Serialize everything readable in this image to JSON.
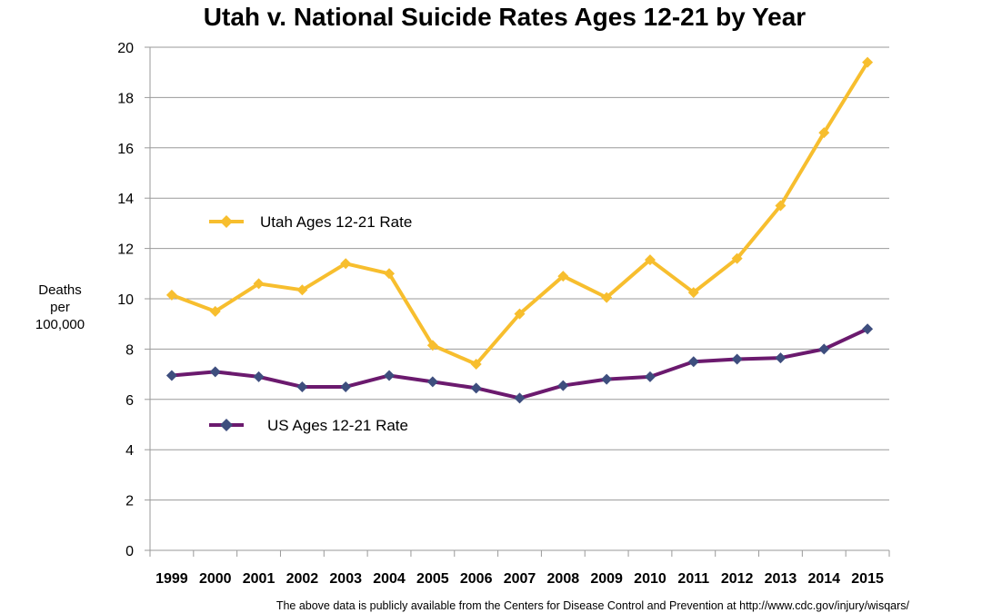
{
  "chart_data": {
    "type": "line",
    "title": "Utah v. National Suicide Rates Ages 12-21 by Year",
    "ylabel_lines": [
      "Deaths",
      "per",
      "100,000"
    ],
    "xlabel": "",
    "x": [
      "1999",
      "2000",
      "2001",
      "2002",
      "2003",
      "2004",
      "2005",
      "2006",
      "2007",
      "2008",
      "2009",
      "2010",
      "2011",
      "2012",
      "2013",
      "2014",
      "2015"
    ],
    "yticks": [
      "0",
      "2",
      "4",
      "6",
      "8",
      "10",
      "12",
      "14",
      "16",
      "18",
      "20"
    ],
    "ylim": [
      0,
      20
    ],
    "grid": true,
    "series": [
      {
        "name": "Utah Ages 12-21 Rate",
        "color": "#F7BE2E",
        "values": [
          10.15,
          9.5,
          10.6,
          10.35,
          11.4,
          11.0,
          8.15,
          7.4,
          9.4,
          10.9,
          10.05,
          11.55,
          10.25,
          11.6,
          13.7,
          16.6,
          19.4
        ]
      },
      {
        "name": "US Ages 12-21 Rate",
        "color": "#6B1A6E",
        "marker_color": "#3E4E7E",
        "values": [
          6.95,
          7.1,
          6.9,
          6.5,
          6.5,
          6.95,
          6.7,
          6.45,
          6.05,
          6.55,
          6.8,
          6.9,
          7.5,
          7.6,
          7.65,
          8.0,
          8.8
        ]
      }
    ],
    "source_note": "The above data is publicly available from the Centers for Disease Control and Prevention at http://www.cdc.gov/injury/wisqars/"
  }
}
